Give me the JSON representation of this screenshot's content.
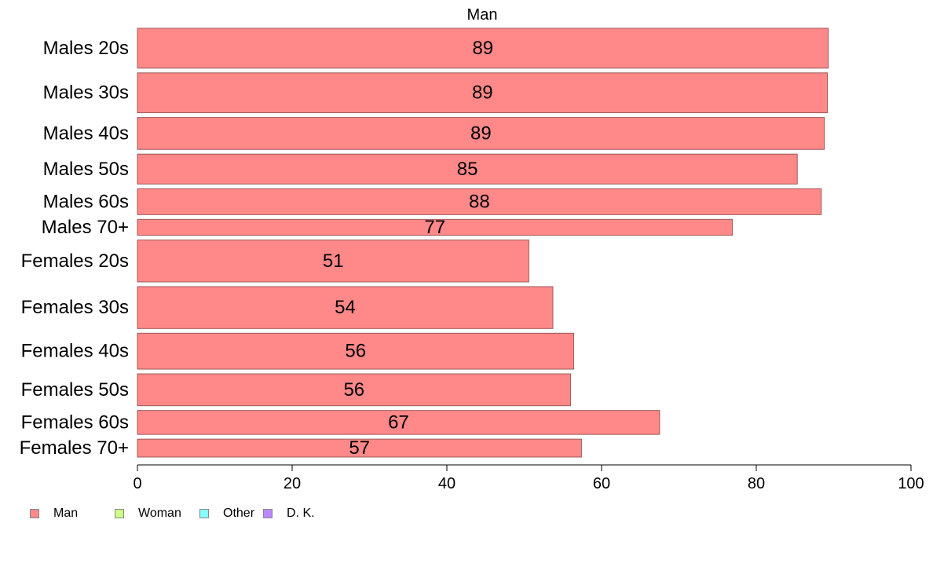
{
  "chart_data": {
    "type": "bar",
    "orientation": "horizontal",
    "title": "Man",
    "categories": [
      "Males 20s",
      "Males 30s",
      "Males 40s",
      "Males 50s",
      "Males 60s",
      "Males 70+",
      "Females 20s",
      "Females 30s",
      "Females 40s",
      "Females 50s",
      "Females 60s",
      "Females 70+"
    ],
    "values": [
      89.3,
      89.2,
      88.8,
      85.3,
      88.4,
      76.9,
      50.6,
      53.7,
      56.4,
      56.0,
      67.5,
      57.4
    ],
    "labels": [
      "89",
      "89",
      "89",
      "85",
      "88",
      "77",
      "51",
      "54",
      "56",
      "56",
      "67",
      "57"
    ],
    "bar_weights": [
      1.0,
      1.0,
      0.8,
      0.75,
      0.65,
      0.4,
      1.05,
      1.05,
      0.9,
      0.8,
      0.6,
      0.45
    ],
    "xlim": [
      0,
      100
    ],
    "xticks": [
      0,
      20,
      40,
      60,
      80,
      100
    ],
    "xlabel": "",
    "ylabel": "",
    "grid": false,
    "bar_color": "#ff8888",
    "bar_border": "#a05a5a",
    "legend_position": "bottom-left",
    "legend": [
      {
        "name": "Man",
        "color": "#ff8888"
      },
      {
        "name": "Woman",
        "color": "#ccff88"
      },
      {
        "name": "Other",
        "color": "#88ffff"
      },
      {
        "name": "D. K.",
        "color": "#bb88ff"
      }
    ]
  }
}
